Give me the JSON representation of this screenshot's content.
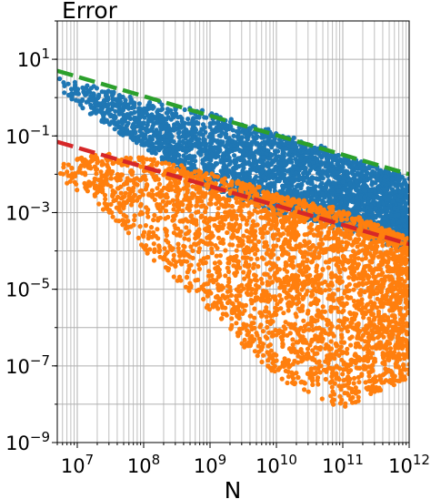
{
  "chart_data": {
    "type": "scatter",
    "title": "Error",
    "xlabel": "N",
    "ylabel": "",
    "xscale": "log",
    "yscale": "log",
    "xlim": [
      5000000,
      1000000000000
    ],
    "ylim": [
      1e-09,
      100
    ],
    "grid": true,
    "legend": "none",
    "x_ticks": [
      {
        "value": 10000000,
        "base": "10",
        "exp": "7"
      },
      {
        "value": 100000000,
        "base": "10",
        "exp": "8"
      },
      {
        "value": 1000000000,
        "base": "10",
        "exp": "9"
      },
      {
        "value": 10000000000,
        "base": "10",
        "exp": "10"
      },
      {
        "value": 100000000000,
        "base": "10",
        "exp": "11"
      },
      {
        "value": 1000000000000,
        "base": "10",
        "exp": "12"
      }
    ],
    "y_ticks": [
      {
        "value": 10,
        "base": "10",
        "exp": "1"
      },
      {
        "value": 0.1,
        "base": "10",
        "exp": "−1"
      },
      {
        "value": 0.001,
        "base": "10",
        "exp": "−3"
      },
      {
        "value": 1e-05,
        "base": "10",
        "exp": "−5"
      },
      {
        "value": 1e-07,
        "base": "10",
        "exp": "−7"
      },
      {
        "value": 1e-09,
        "base": "10",
        "exp": "−9"
      }
    ],
    "series": [
      {
        "color": "#1f77b4",
        "marker": "dot",
        "envelope": [
          {
            "x": 5000000,
            "upper": 3.2,
            "lower": 1.6
          },
          {
            "x": 20000000,
            "upper": 1.8,
            "lower": 0.3
          },
          {
            "x": 100000000,
            "upper": 0.8,
            "lower": 0.05
          },
          {
            "x": 1000000000,
            "upper": 0.4,
            "lower": 0.004
          },
          {
            "x": 10000000000,
            "upper": 0.12,
            "lower": 0.001
          },
          {
            "x": 100000000000,
            "upper": 0.03,
            "lower": 0.0004
          },
          {
            "x": 1000000000000,
            "upper": 0.008,
            "lower": 0.0001
          }
        ]
      },
      {
        "color": "#ff7f0e",
        "marker": "dot",
        "envelope": [
          {
            "x": 5000000,
            "upper": 0.02,
            "lower": 0.008
          },
          {
            "x": 20000000,
            "upper": 0.03,
            "lower": 0.002
          },
          {
            "x": 100000000,
            "upper": 0.025,
            "lower": 0.0001
          },
          {
            "x": 1000000000,
            "upper": 0.01,
            "lower": 3e-06
          },
          {
            "x": 10000000000,
            "upper": 0.003,
            "lower": 5e-08
          },
          {
            "x": 100000000000,
            "upper": 0.001,
            "lower": 8e-09
          },
          {
            "x": 1000000000000,
            "upper": 0.0002,
            "lower": 5e-08
          }
        ]
      }
    ],
    "reference_lines": [
      {
        "color": "#2ca02c",
        "style": "dashed",
        "points": [
          [
            5000000,
            5
          ],
          [
            1000000000000,
            0.01
          ]
        ]
      },
      {
        "color": "#d62728",
        "style": "dashed",
        "points": [
          [
            5000000,
            0.07
          ],
          [
            1000000000000,
            0.00015
          ]
        ]
      }
    ]
  }
}
